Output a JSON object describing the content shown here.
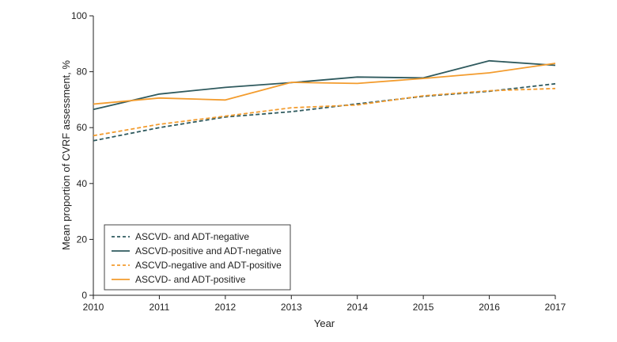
{
  "chart_data": {
    "type": "line",
    "title": "",
    "xlabel": "Year",
    "ylabel": "Mean proportion of CVRF assessment, %",
    "x": [
      2010,
      2011,
      2012,
      2013,
      2014,
      2015,
      2016,
      2017
    ],
    "xlim": [
      2010,
      2017
    ],
    "ylim": [
      0,
      100
    ],
    "yticks": [
      0,
      20,
      40,
      60,
      80,
      100
    ],
    "grid": false,
    "legend_position": "bottom-left",
    "series": [
      {
        "name": "ASCVD- and ADT-negative",
        "color": "#2f5a5e",
        "dash": "dashed",
        "values": [
          55.3,
          60.0,
          63.8,
          65.7,
          68.5,
          71.2,
          73.0,
          75.7
        ]
      },
      {
        "name": "ASCVD-positive and ADT-negative",
        "color": "#2f5a5e",
        "dash": "solid",
        "values": [
          66.5,
          72.0,
          74.4,
          76.1,
          78.1,
          77.8,
          83.9,
          82.3
        ]
      },
      {
        "name": "ASCVD-negative and ADT-positive",
        "color": "#f39c2e",
        "dash": "dashed",
        "values": [
          57.1,
          61.2,
          64.1,
          67.1,
          68.1,
          71.4,
          73.2,
          74.0
        ]
      },
      {
        "name": "ASCVD- and ADT-positive",
        "color": "#f39c2e",
        "dash": "solid",
        "values": [
          68.4,
          70.6,
          69.9,
          76.2,
          75.8,
          77.6,
          79.6,
          83.0
        ]
      }
    ]
  }
}
